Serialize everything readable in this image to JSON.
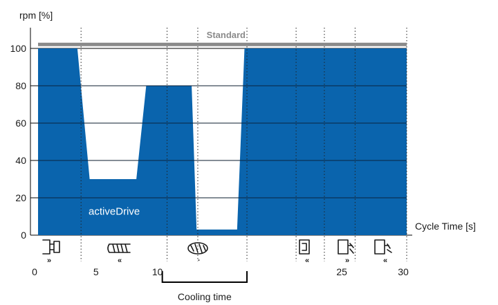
{
  "chart_data": {
    "type": "area",
    "ylabel": "rpm [%]",
    "xlabel": "Cycle Time [s]",
    "xlim": [
      0,
      30
    ],
    "ylim": [
      0,
      100
    ],
    "x_ticks": [
      "0",
      "5",
      "10",
      "25",
      "30"
    ],
    "x_tick_values": [
      0,
      5,
      10,
      25,
      30
    ],
    "y_ticks": [
      0,
      20,
      40,
      60,
      80,
      100
    ],
    "y_tick_labels": [
      "0",
      "20",
      "40",
      "60",
      "80",
      "100"
    ],
    "phase_boundaries": [
      3.5,
      10.5,
      13.0,
      17.0,
      21.0,
      23.3,
      25.8
    ],
    "series": [
      {
        "name": "activeDrive",
        "color": "#0a64ad",
        "x": [
          0,
          3.2,
          4.2,
          8.0,
          8.8,
          10.0,
          12.5,
          12.9,
          16.2,
          16.8,
          30
        ],
        "y": [
          100,
          100,
          30,
          30,
          80,
          80,
          80,
          3,
          3,
          100,
          100
        ]
      },
      {
        "name": "Standard",
        "color": "#8a8a8a",
        "x": [
          0,
          30
        ],
        "y": [
          101,
          101
        ]
      }
    ],
    "annotations": [
      {
        "text": "Cooling time",
        "x_start": 10.0,
        "x_end": 17.0
      }
    ]
  },
  "icons": [
    "mold-close-icon",
    "injection-icon",
    "screw-rotation-icon",
    "mold-open-icon",
    "ejector-forward-icon",
    "ejector-back-icon"
  ]
}
